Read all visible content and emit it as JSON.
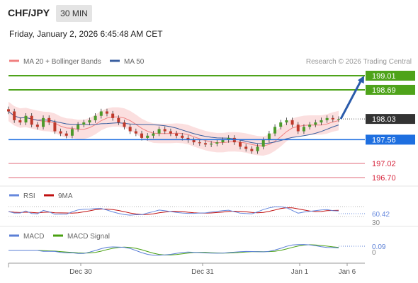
{
  "header": {
    "symbol": "CHF/JPY",
    "timeframe": "30 MIN",
    "datetime": "Friday, January 2, 2026 6:45:48 AM CET"
  },
  "legend": {
    "ma20": "MA 20 + Bollinger Bands",
    "ma50": "MA 50",
    "credit": "Research © 2026 Trading Central"
  },
  "colors": {
    "ma20": "#f08080",
    "ma50": "#3a5fa0",
    "green": "#4ea31a",
    "blue": "#1e6fe0",
    "red": "#d7263d",
    "dark": "#333333",
    "rsi": "#6688dd",
    "rsi9": "#c01010",
    "macd": "#5b7fd6",
    "signal": "#48a010",
    "band": "#f9d4d4"
  },
  "chart_data": [
    {
      "type": "candlestick",
      "price_range": [
        196.5,
        199.25
      ],
      "x_ticks": [
        "Dec 30",
        "Dec 31",
        "Jan 1",
        "Jan 6"
      ],
      "levels": [
        {
          "label": "199.01",
          "value": 199.01,
          "kind": "resistance"
        },
        {
          "label": "198.69",
          "value": 198.69,
          "kind": "resistance"
        },
        {
          "label": "198.03",
          "value": 198.03,
          "kind": "last"
        },
        {
          "label": "197.56",
          "value": 197.56,
          "kind": "pivot"
        },
        {
          "label": "197.02",
          "value": 197.02,
          "kind": "support"
        },
        {
          "label": "196.70",
          "value": 196.7,
          "kind": "support"
        }
      ],
      "closes": [
        198.2,
        198.0,
        197.95,
        198.1,
        197.9,
        197.85,
        198.05,
        197.95,
        197.75,
        197.7,
        197.65,
        197.8,
        197.9,
        197.95,
        198.0,
        198.1,
        198.2,
        198.15,
        198.05,
        197.95,
        197.85,
        197.75,
        197.7,
        197.6,
        197.65,
        197.7,
        197.8,
        197.75,
        197.7,
        197.65,
        197.6,
        197.55,
        197.5,
        197.48,
        197.45,
        197.47,
        197.5,
        197.55,
        197.6,
        197.5,
        197.4,
        197.35,
        197.3,
        197.4,
        197.55,
        197.7,
        197.85,
        197.95,
        198.0,
        197.9,
        197.75,
        197.85,
        197.9,
        197.95,
        198.0,
        198.05,
        198.02,
        198.03
      ],
      "arrow_target": 199.01
    },
    {
      "type": "line",
      "name": "RSI",
      "series_names": [
        "RSI",
        "9MA"
      ],
      "last_value": "60.42",
      "hidden_ticks": [
        "30"
      ],
      "range": [
        30,
        70
      ]
    },
    {
      "type": "line",
      "name": "MACD",
      "series_names": [
        "MACD",
        "MACD Signal"
      ],
      "last_value": "0.09",
      "zero_label": "0",
      "range": [
        -0.4,
        0.4
      ]
    }
  ]
}
